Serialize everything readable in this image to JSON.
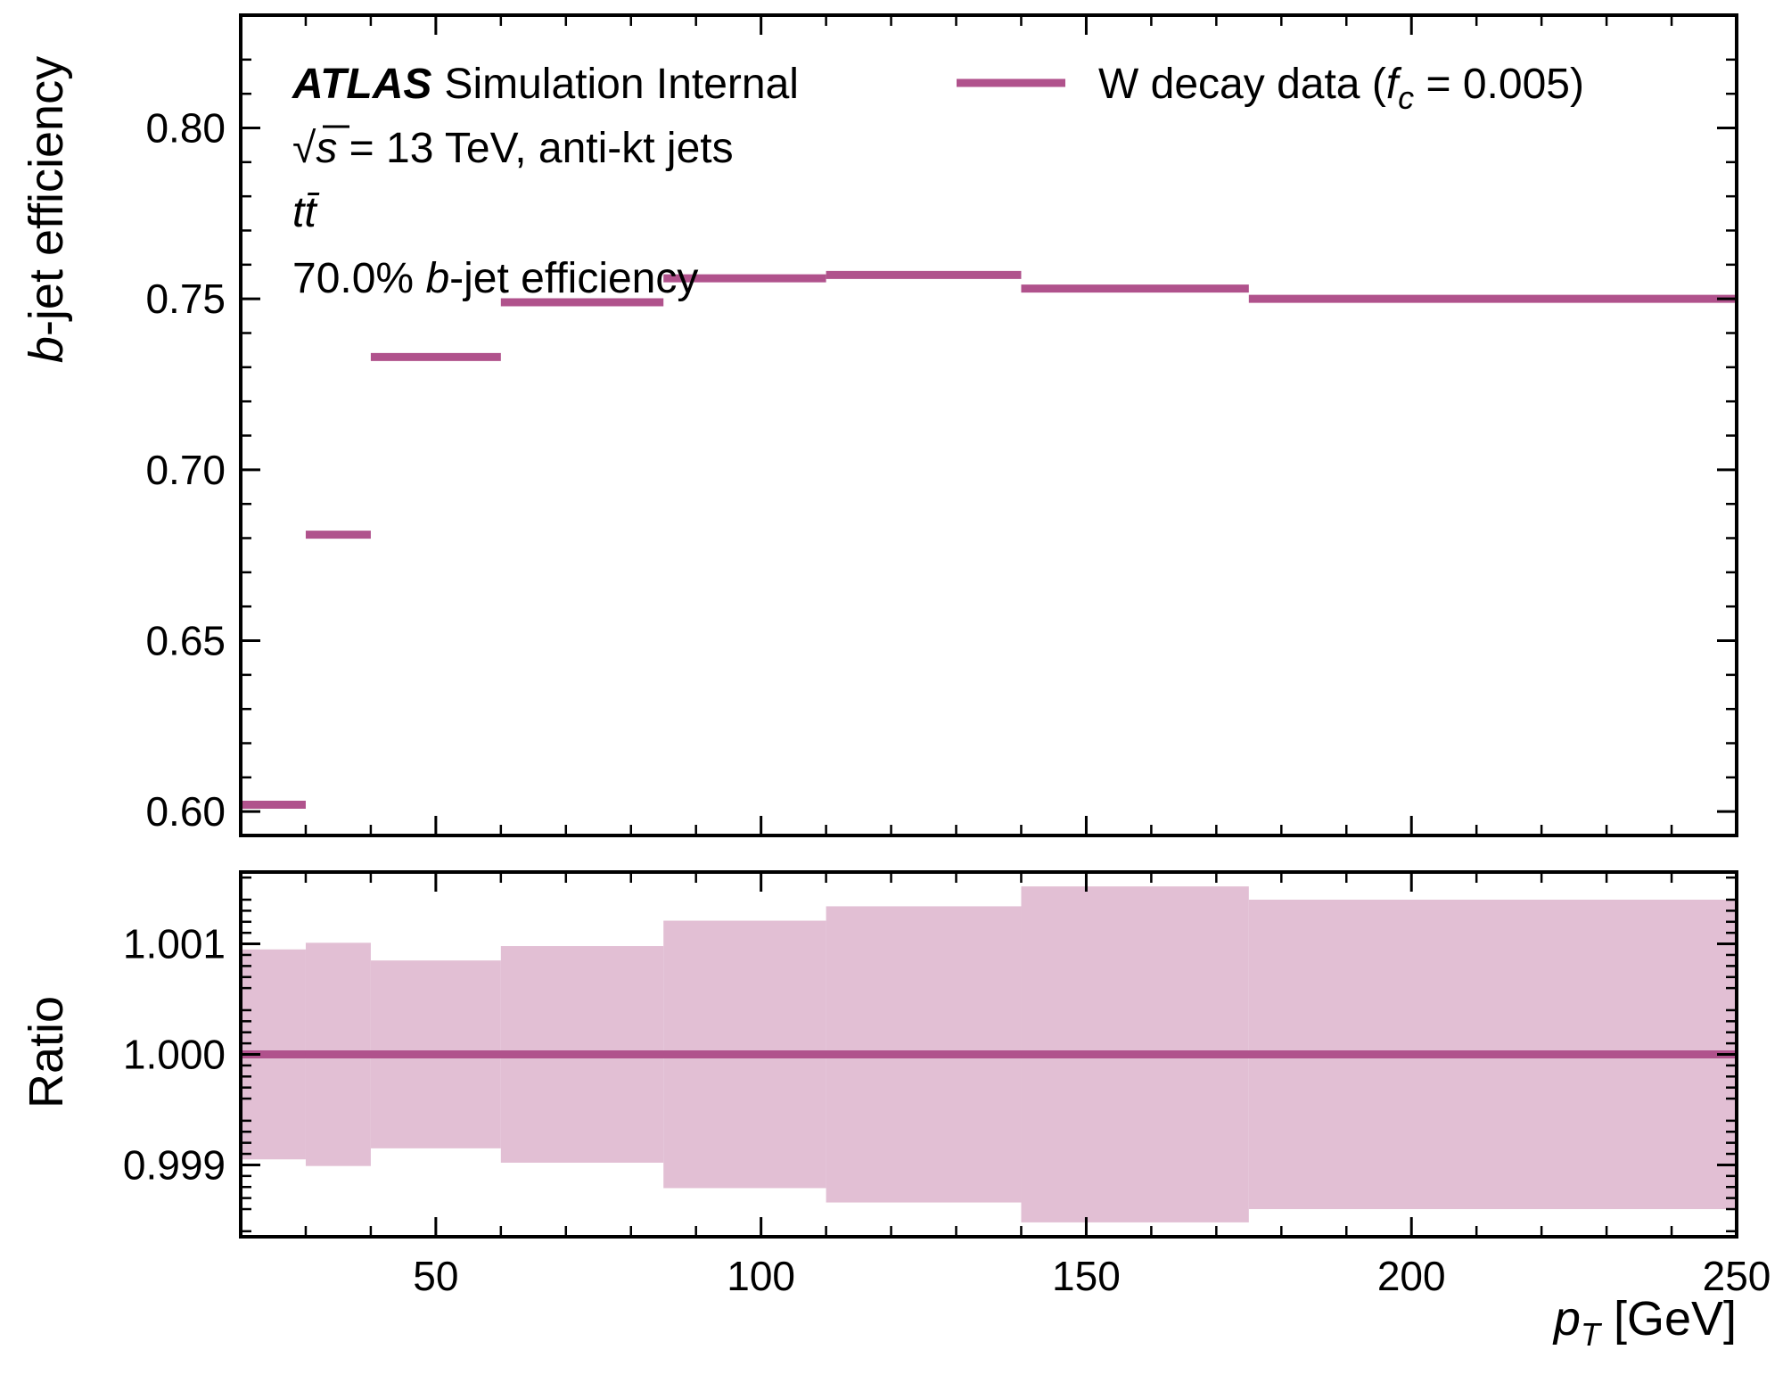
{
  "colors": {
    "series": "#b0528c",
    "band": "#e2bfd4",
    "axis": "#000000"
  },
  "annotations": {
    "brand": "ATLAS",
    "brand_suffix": "Simulation Internal",
    "energy_sqrt": "√",
    "energy_s": "s",
    "energy_rest": " = 13 TeV, anti-kt jets",
    "process": "tt̄",
    "wp_prefix": "70.0% ",
    "wp_b": "b",
    "wp_suffix": "-jet efficiency"
  },
  "legend": {
    "label_prefix": "W decay data (",
    "label_f": "f",
    "label_sub": "c",
    "label_suffix": " = 0.005)"
  },
  "chart_data": [
    {
      "type": "line",
      "panel": "main",
      "xlabel": "",
      "ylabel_italic": "b",
      "ylabel_rest": "-jet efficiency",
      "xlim": [
        20,
        250
      ],
      "ylim": [
        0.593,
        0.833
      ],
      "yticks": [
        "0.60",
        "0.65",
        "0.70",
        "0.75",
        "0.80"
      ],
      "xticks": [
        50,
        100,
        150,
        200,
        250
      ],
      "legend_position": "top-right",
      "series": [
        {
          "name": "W decay data (fc = 0.005)",
          "bins": [
            {
              "x0": 20,
              "x1": 30,
              "y": 0.602
            },
            {
              "x0": 30,
              "x1": 40,
              "y": 0.681
            },
            {
              "x0": 40,
              "x1": 60,
              "y": 0.733
            },
            {
              "x0": 60,
              "x1": 85,
              "y": 0.749
            },
            {
              "x0": 85,
              "x1": 110,
              "y": 0.756
            },
            {
              "x0": 110,
              "x1": 140,
              "y": 0.757
            },
            {
              "x0": 140,
              "x1": 175,
              "y": 0.753
            },
            {
              "x0": 175,
              "x1": 250,
              "y": 0.75
            }
          ]
        }
      ]
    },
    {
      "type": "area",
      "panel": "ratio",
      "xlabel_italic": "p",
      "xlabel_sub": "T",
      "xlabel_rest": " [GeV]",
      "ylabel": "Ratio",
      "xlim": [
        20,
        250
      ],
      "ylim": [
        0.99835,
        1.00165
      ],
      "yticks": [
        "0.999",
        "1.000",
        "1.001"
      ],
      "xticks": [
        "50",
        "100",
        "150",
        "200",
        "250"
      ],
      "ratio_line": 1.0,
      "bands": [
        {
          "x0": 20,
          "x1": 30,
          "lo": 0.99905,
          "hi": 1.00095
        },
        {
          "x0": 30,
          "x1": 40,
          "lo": 0.99899,
          "hi": 1.00101
        },
        {
          "x0": 40,
          "x1": 60,
          "lo": 0.99915,
          "hi": 1.00085
        },
        {
          "x0": 60,
          "x1": 85,
          "lo": 0.99902,
          "hi": 1.00098
        },
        {
          "x0": 85,
          "x1": 110,
          "lo": 0.99879,
          "hi": 1.00121
        },
        {
          "x0": 110,
          "x1": 140,
          "lo": 0.99866,
          "hi": 1.00134
        },
        {
          "x0": 140,
          "x1": 175,
          "lo": 0.99848,
          "hi": 1.00152
        },
        {
          "x0": 175,
          "x1": 250,
          "lo": 0.9986,
          "hi": 1.0014
        }
      ]
    }
  ]
}
